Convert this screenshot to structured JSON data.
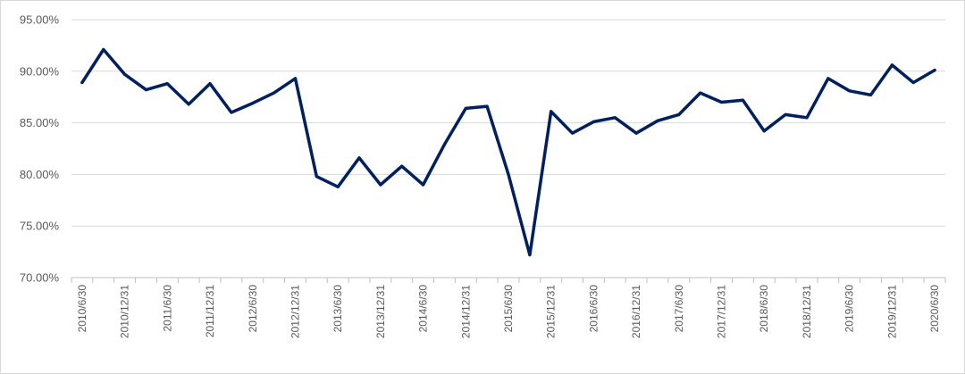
{
  "chart_data": {
    "type": "line",
    "title": "",
    "xlabel": "",
    "ylabel": "",
    "ylim": [
      0.7,
      0.95
    ],
    "yticks": [
      0.7,
      0.75,
      0.8,
      0.85,
      0.9,
      0.95
    ],
    "ytick_labels": [
      "70.00%",
      "75.00%",
      "80.00%",
      "85.00%",
      "90.00%",
      "95.00%"
    ],
    "grid": true,
    "legend": "none",
    "x": [
      "2010/6/30",
      "2010/9/30",
      "2010/12/31",
      "2011/3/31",
      "2011/6/30",
      "2011/9/30",
      "2011/12/31",
      "2012/3/31",
      "2012/6/30",
      "2012/9/30",
      "2012/12/31",
      "2013/3/31",
      "2013/6/30",
      "2013/9/30",
      "2013/12/31",
      "2014/3/31",
      "2014/6/30",
      "2014/9/30",
      "2014/12/31",
      "2015/3/31",
      "2015/6/30",
      "2015/9/30",
      "2015/12/31",
      "2016/3/31",
      "2016/6/30",
      "2016/9/30",
      "2016/12/31",
      "2017/3/31",
      "2017/6/30",
      "2017/9/30",
      "2017/12/31",
      "2018/3/31",
      "2018/6/30",
      "2018/9/30",
      "2018/12/31",
      "2019/3/31",
      "2019/6/30",
      "2019/9/30",
      "2019/12/31",
      "2020/3/31",
      "2020/6/30"
    ],
    "x_tick_labels": [
      "2010/6/30",
      "",
      "2010/12/31",
      "",
      "2011/6/30",
      "",
      "2011/12/31",
      "",
      "2012/6/30",
      "",
      "2012/12/31",
      "",
      "2013/6/30",
      "",
      "2013/12/31",
      "",
      "2014/6/30",
      "",
      "2014/12/31",
      "",
      "2015/6/30",
      "",
      "2015/12/31",
      "",
      "2016/6/30",
      "",
      "2016/12/31",
      "",
      "2017/6/30",
      "",
      "2017/12/31",
      "",
      "2018/6/30",
      "",
      "2018/12/31",
      "",
      "2019/6/30",
      "",
      "2019/12/31",
      "",
      "2020/6/30"
    ],
    "series": [
      {
        "color": "#002060",
        "values": [
          0.889,
          0.921,
          0.897,
          0.882,
          0.888,
          0.868,
          0.888,
          0.86,
          0.869,
          0.879,
          0.893,
          0.798,
          0.788,
          0.816,
          0.79,
          0.808,
          0.79,
          0.829,
          0.864,
          0.866,
          0.8,
          0.722,
          0.861,
          0.84,
          0.851,
          0.855,
          0.84,
          0.852,
          0.858,
          0.879,
          0.87,
          0.872,
          0.842,
          0.858,
          0.855,
          0.893,
          0.881,
          0.877,
          0.906,
          0.889,
          0.901
        ]
      }
    ]
  }
}
